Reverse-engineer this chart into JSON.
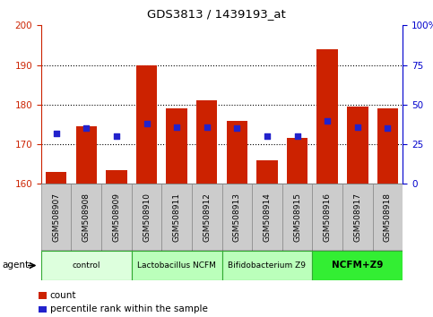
{
  "title": "GDS3813 / 1439193_at",
  "samples": [
    "GSM508907",
    "GSM508908",
    "GSM508909",
    "GSM508910",
    "GSM508911",
    "GSM508912",
    "GSM508913",
    "GSM508914",
    "GSM508915",
    "GSM508916",
    "GSM508917",
    "GSM508918"
  ],
  "count_values": [
    163,
    174.5,
    163.5,
    190,
    179,
    181,
    176,
    166,
    171.5,
    194,
    179.5,
    179
  ],
  "percentile_values": [
    32,
    35,
    30,
    38,
    36,
    36,
    35,
    30,
    30,
    40,
    36,
    35
  ],
  "ylim_left": [
    160,
    200
  ],
  "ylim_right": [
    0,
    100
  ],
  "yticks_left": [
    160,
    170,
    180,
    190,
    200
  ],
  "yticks_right": [
    0,
    25,
    50,
    75,
    100
  ],
  "bar_color": "#cc2200",
  "dot_color": "#2222cc",
  "bar_bottom": 160,
  "groups": [
    {
      "label": "control",
      "start": 0,
      "end": 3,
      "color": "#ddffdd"
    },
    {
      "label": "Lactobacillus NCFM",
      "start": 3,
      "end": 6,
      "color": "#bbffbb"
    },
    {
      "label": "Bifidobacterium Z9",
      "start": 6,
      "end": 9,
      "color": "#bbffbb"
    },
    {
      "label": "NCFM+Z9",
      "start": 9,
      "end": 12,
      "color": "#33ee33"
    }
  ],
  "xlabel_agent": "agent",
  "legend_count": "count",
  "legend_pct": "percentile rank within the sample",
  "tick_color_left": "#cc2200",
  "tick_color_right": "#0000cc",
  "chart_bg": "#ffffff",
  "xtick_box_bg": "#cccccc",
  "fig_bg": "#ffffff",
  "grid_color": "#000000",
  "border_color": "#000000"
}
